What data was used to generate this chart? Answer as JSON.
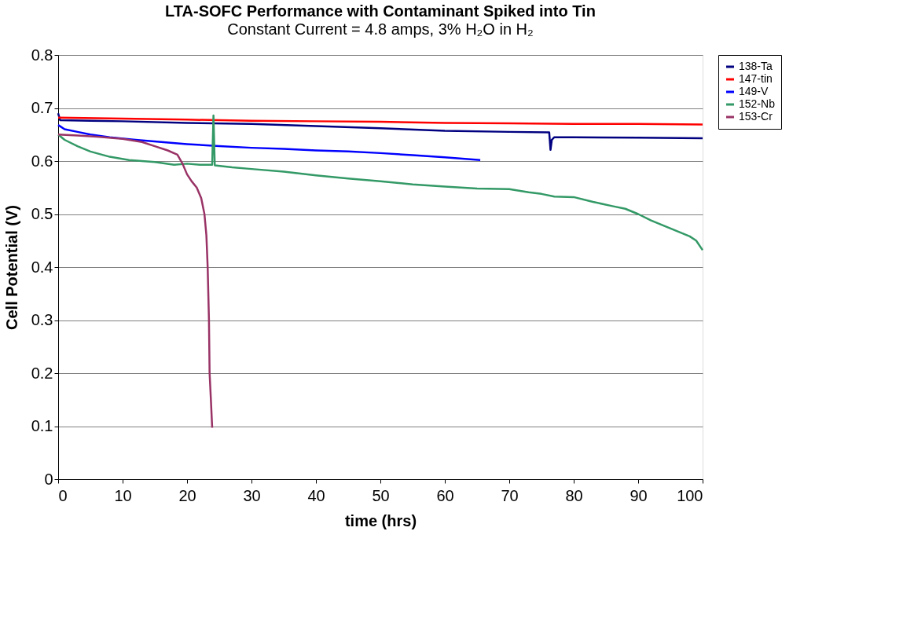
{
  "chart_data": {
    "type": "line",
    "title": "LTA-SOFC Performance with Contaminant Spiked into Tin",
    "subtitle": "Constant Current = 4.8 amps, 3% H₂O in H₂",
    "xlabel": "time (hrs)",
    "ylabel": "Cell Potential (V)",
    "xlim": [
      0,
      100
    ],
    "ylim": [
      0,
      0.8
    ],
    "xticks": [
      0,
      10,
      20,
      30,
      40,
      50,
      60,
      70,
      80,
      90,
      100
    ],
    "yticks": [
      0,
      0.1,
      0.2,
      0.3,
      0.4,
      0.5,
      0.6,
      0.7,
      0.8
    ],
    "grid": "y",
    "legend": "right",
    "marker": "none",
    "line_style": "solid",
    "series": [
      {
        "name": "138-Ta",
        "color": "#000080",
        "x": [
          0,
          0.3,
          5,
          10,
          20,
          30,
          40,
          50,
          60,
          70,
          76.2,
          76.4,
          76.6,
          77,
          80,
          90,
          100
        ],
        "values": [
          0.69,
          0.677,
          0.676,
          0.675,
          0.672,
          0.67,
          0.666,
          0.662,
          0.657,
          0.655,
          0.654,
          0.621,
          0.64,
          0.645,
          0.645,
          0.644,
          0.643
        ]
      },
      {
        "name": "147-tin",
        "color": "#ff0000",
        "x": [
          0,
          10,
          20,
          30,
          40,
          50,
          60,
          70,
          80,
          90,
          100
        ],
        "values": [
          0.682,
          0.68,
          0.678,
          0.676,
          0.675,
          0.674,
          0.672,
          0.671,
          0.67,
          0.67,
          0.669
        ]
      },
      {
        "name": "149-V",
        "color": "#0000ff",
        "x": [
          0,
          1,
          3,
          5,
          8,
          12,
          16,
          20,
          25,
          30,
          35,
          40,
          45,
          50,
          55,
          60,
          65.5
        ],
        "values": [
          0.668,
          0.66,
          0.655,
          0.65,
          0.645,
          0.64,
          0.636,
          0.632,
          0.628,
          0.625,
          0.623,
          0.62,
          0.618,
          0.615,
          0.611,
          0.607,
          0.602
        ]
      },
      {
        "name": "152-Nb",
        "color": "#339966",
        "x": [
          0,
          1,
          3,
          5,
          8,
          11,
          15,
          18,
          20,
          22,
          23.9,
          24.1,
          24.3,
          27,
          30,
          35,
          40,
          45,
          50,
          55,
          60,
          65,
          70,
          73,
          75,
          77,
          80,
          83,
          86,
          88,
          90,
          92,
          94,
          96,
          98,
          99,
          100
        ],
        "values": [
          0.65,
          0.64,
          0.628,
          0.618,
          0.608,
          0.602,
          0.598,
          0.593,
          0.595,
          0.593,
          0.593,
          0.686,
          0.592,
          0.588,
          0.585,
          0.58,
          0.573,
          0.567,
          0.562,
          0.556,
          0.552,
          0.548,
          0.547,
          0.541,
          0.538,
          0.533,
          0.532,
          0.523,
          0.515,
          0.51,
          0.5,
          0.488,
          0.478,
          0.468,
          0.458,
          0.45,
          0.432
        ]
      },
      {
        "name": "153-Cr",
        "color": "#993366",
        "x": [
          0,
          3,
          6,
          10,
          13,
          15,
          17,
          18.5,
          19.3,
          20,
          20.7,
          21.5,
          22.2,
          22.7,
          23,
          23.2,
          23.4,
          23.5,
          23.7,
          23.9
        ],
        "values": [
          0.65,
          0.648,
          0.646,
          0.642,
          0.636,
          0.628,
          0.62,
          0.612,
          0.595,
          0.575,
          0.562,
          0.55,
          0.53,
          0.5,
          0.46,
          0.4,
          0.3,
          0.2,
          0.15,
          0.097
        ]
      }
    ]
  }
}
